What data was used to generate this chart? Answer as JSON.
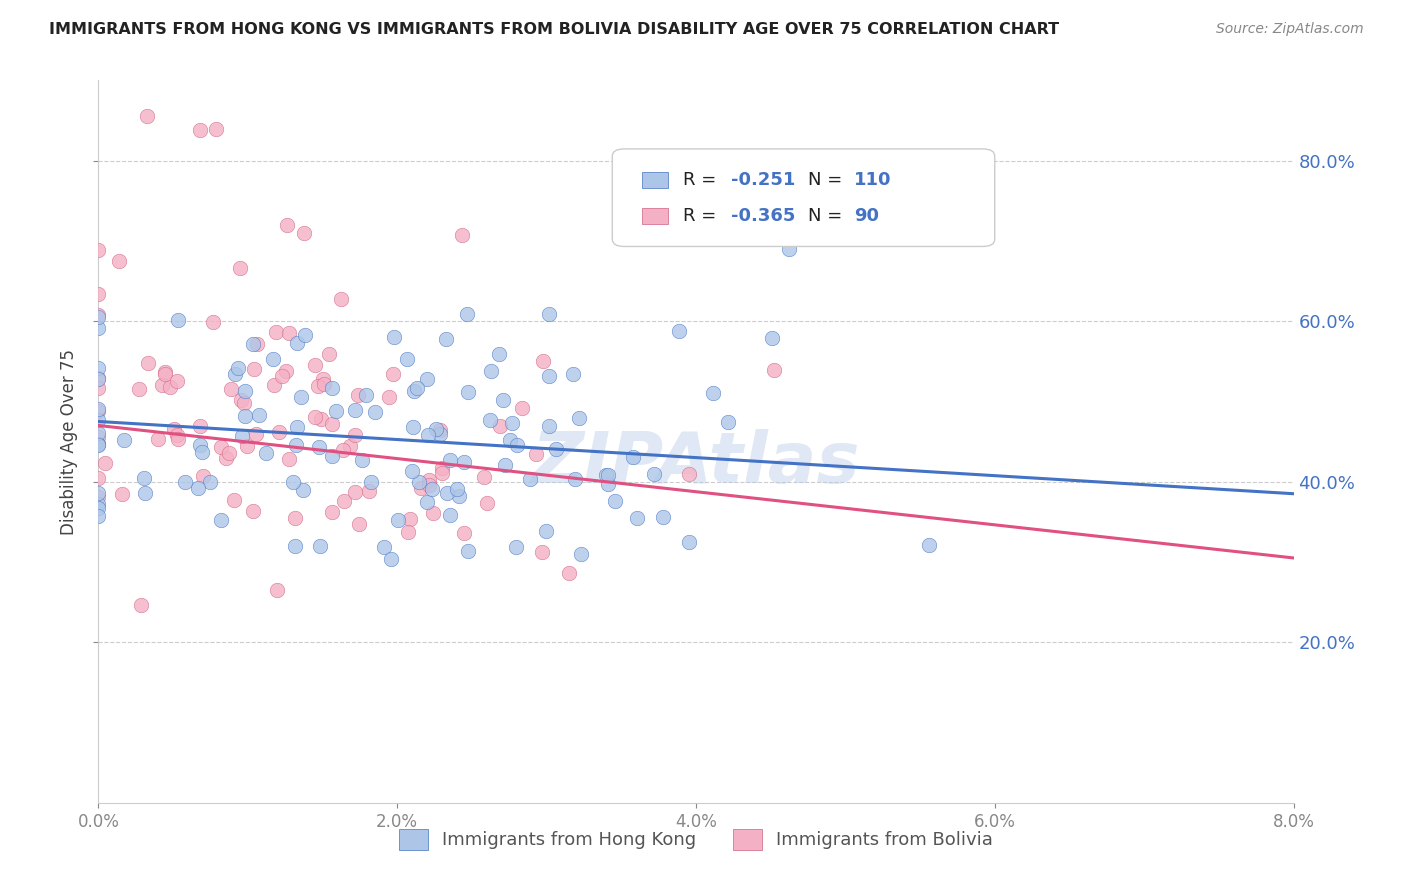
{
  "title": "IMMIGRANTS FROM HONG KONG VS IMMIGRANTS FROM BOLIVIA DISABILITY AGE OVER 75 CORRELATION CHART",
  "source": "Source: ZipAtlas.com",
  "ylabel": "Disability Age Over 75",
  "legend_label1": "Immigrants from Hong Kong",
  "legend_label2": "Immigrants from Bolivia",
  "legend_R1_val": "-0.251",
  "legend_N1_val": "110",
  "legend_R2_val": "-0.365",
  "legend_N2_val": "90",
  "color_hk": "#adc6e8",
  "color_bolivia": "#f4b0c4",
  "color_hk_line": "#4472c4",
  "color_bolivia_line": "#e05080",
  "color_hk_dark": "#4472c4",
  "color_bolivia_dark": "#d06080",
  "watermark": "ZIPAtlas",
  "title_color": "#222222",
  "source_color": "#888888",
  "right_axis_color": "#4472c4",
  "background_color": "#ffffff",
  "xmin": 0.0,
  "xmax": 0.08,
  "ymin": 0.0,
  "ymax": 0.9,
  "yticks": [
    0.2,
    0.4,
    0.6,
    0.8
  ],
  "ytick_labels": [
    "20.0%",
    "40.0%",
    "60.0%",
    "80.0%"
  ],
  "N_hk": 110,
  "N_bolivia": 90,
  "R_hk": -0.251,
  "R_bolivia": -0.365,
  "line_hk_x0": 0.0,
  "line_hk_y0": 0.475,
  "line_hk_x1": 0.08,
  "line_hk_y1": 0.385,
  "line_bol_x0": 0.0,
  "line_bol_y0": 0.47,
  "line_bol_x1": 0.08,
  "line_bol_y1": 0.305
}
